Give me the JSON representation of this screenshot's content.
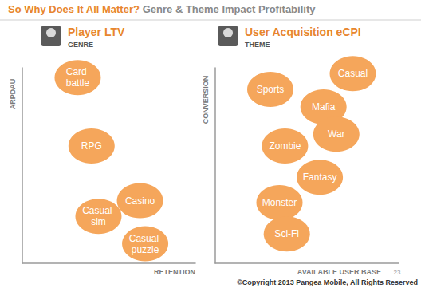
{
  "header": {
    "highlight": "So Why Does It All Matter?",
    "title": "Genre & Theme Impact Profitability"
  },
  "page_number": 23,
  "footer": "©Copyright 2013 Pangea Mobile, All Rights Reserved",
  "chart_data": [
    {
      "type": "scatter",
      "title": "Player LTV",
      "subtitle": "GENRE",
      "x_label": "RETENTION",
      "y_label": "ARPDAU",
      "point_labels": [
        "Card battle",
        "RPG",
        "Casino",
        "Casual sim",
        "Casual puzzle"
      ],
      "x": [
        3.2,
        4.0,
        6.8,
        4.4,
        7.1
      ],
      "values": [
        9.5,
        6.0,
        3.2,
        2.4,
        1.0
      ],
      "xlim": [
        0,
        10
      ],
      "ylim": [
        0,
        10
      ],
      "color": "#f5a65b",
      "tick_labels": false,
      "grid": false
    },
    {
      "type": "scatter",
      "title": "User Acquisition eCPI",
      "subtitle": "THEME",
      "x_label": "AVAILABLE USER BASE",
      "y_label": "CONVERSION",
      "point_labels": [
        "Sports",
        "Casual",
        "Mafia",
        "War",
        "Zombie",
        "Fantasy",
        "Monster",
        "Sci-Fi"
      ],
      "x": [
        3.0,
        7.5,
        5.9,
        6.6,
        3.8,
        5.7,
        3.5,
        3.9
      ],
      "values": [
        8.9,
        9.7,
        8.0,
        6.6,
        6.0,
        4.4,
        3.1,
        1.5
      ],
      "xlim": [
        0,
        10
      ],
      "ylim": [
        0,
        10
      ],
      "color": "#f5a65b",
      "tick_labels": false,
      "grid": false
    }
  ]
}
